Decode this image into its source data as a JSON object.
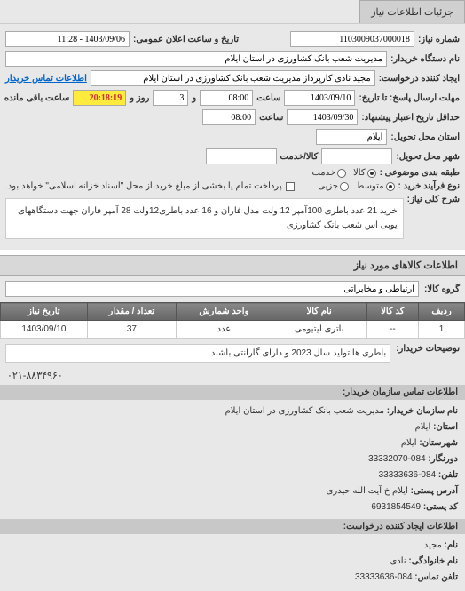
{
  "tab": {
    "title": "جزئیات اطلاعات نیاز"
  },
  "form": {
    "need_no_label": "شماره نیاز:",
    "need_no": "1103009037000018",
    "announce_label": "تاریخ و ساعت اعلان عمومی:",
    "announce_value": "1403/09/06 - 11:28",
    "buyer_label": "نام دستگاه خریدار:",
    "buyer_value": "مدیریت شعب بانک کشاورزی در استان ایلام",
    "request_creator_label": "ایجاد کننده درخواست:",
    "request_creator_value": "مجید نادی کارپرداز مدیریت شعب بانک کشاورزی در استان ایلام",
    "buyer_contact_label": "اطلاعات تماس خریدار",
    "deadline_label": "تا تاریخ:",
    "receive_from_label": "مهلت ارسال پاسخ: تا تاریخ:",
    "date1": "1403/09/10",
    "time_label": "ساعت",
    "time1": "08:00",
    "days_label": "و",
    "days_value": "3",
    "days_unit": "روز و",
    "remaining_time": "20:18:19",
    "remaining_label": "ساعت باقی مانده",
    "minimum_label": "حداقل تاریخ اعتبار پیشنهاد:",
    "date2": "1403/09/30",
    "time2": "08:00",
    "province_label": "استان محل تحویل:",
    "province_value": "ایلام",
    "city_label": "شهر محل تحویل:",
    "currency_label": "کالا/خدمت",
    "priority_label": "طبقه بندی موضوعی :",
    "priority_opt1": "کالا",
    "priority_opt2": "خدمت",
    "buy_type_label": "نوع فرآیند خرید :",
    "buy_type_opt1": "متوسط",
    "buy_type_opt2": "جزیی",
    "payment_note": "پرداخت تمام یا بخشی از مبلغ خرید،از محل \"اسناد خزانه اسلامی\" خواهد بود.",
    "summary_label": "شرح کلی نیاز:",
    "summary_text": "خرید 21 عدد باطری 100آمپر 12 ولت مدل فاران و 16 عدد باطری12ولت 28 آمپر فاران جهت دستگاههای یوپی اس شعب بانک کشاورزی"
  },
  "goods_section": {
    "title": "اطلاعات کالاهای مورد نیاز",
    "group_label": "گروه کالا:",
    "group_value": "ارتباطی و مخابراتی"
  },
  "table": {
    "headers": {
      "row": "ردیف",
      "code": "کد کالا",
      "name": "نام کالا",
      "unit": "واحد شمارش",
      "qty": "تعداد / مقدار",
      "date": "تاریخ نیاز"
    },
    "rows": [
      {
        "row": "1",
        "code": "--",
        "name": "باتری لیتیومی",
        "unit": "عدد",
        "qty": "37",
        "date": "1403/09/10"
      }
    ]
  },
  "notes": {
    "label": "توضیحات خریدار:",
    "text": "باطری ها تولید سال 2023 و دارای گارانتی باشند"
  },
  "phone_display": "۰۲۱-۸۸۳۴۹۶۰",
  "contact": {
    "header1": "اطلاعات تماس سازمان خریدار:",
    "org_name_label": "نام سازمان خریدار:",
    "org_name": "مدیریت شعب بانک کشاورزی در استان ایلام",
    "province_label": "استان:",
    "province": "ایلام",
    "city_label": "شهرستان:",
    "city": "ایلام",
    "fax_label": "دورنگار:",
    "fax": "084-33332070",
    "tel_label": "تلفن:",
    "tel": "084-33333636",
    "address_label": "آدرس پستی:",
    "address": "ایلام خ آیت الله حیدری",
    "postal_label": "کد پستی:",
    "postal": "6931854549",
    "header2": "اطلاعات ایجاد کننده درخواست:",
    "name_label": "نام:",
    "name": "مجید",
    "family_label": "نام خانوادگی:",
    "family": "نادی",
    "tel2_label": "تلفن تماس:",
    "tel2": "084-33333636"
  }
}
